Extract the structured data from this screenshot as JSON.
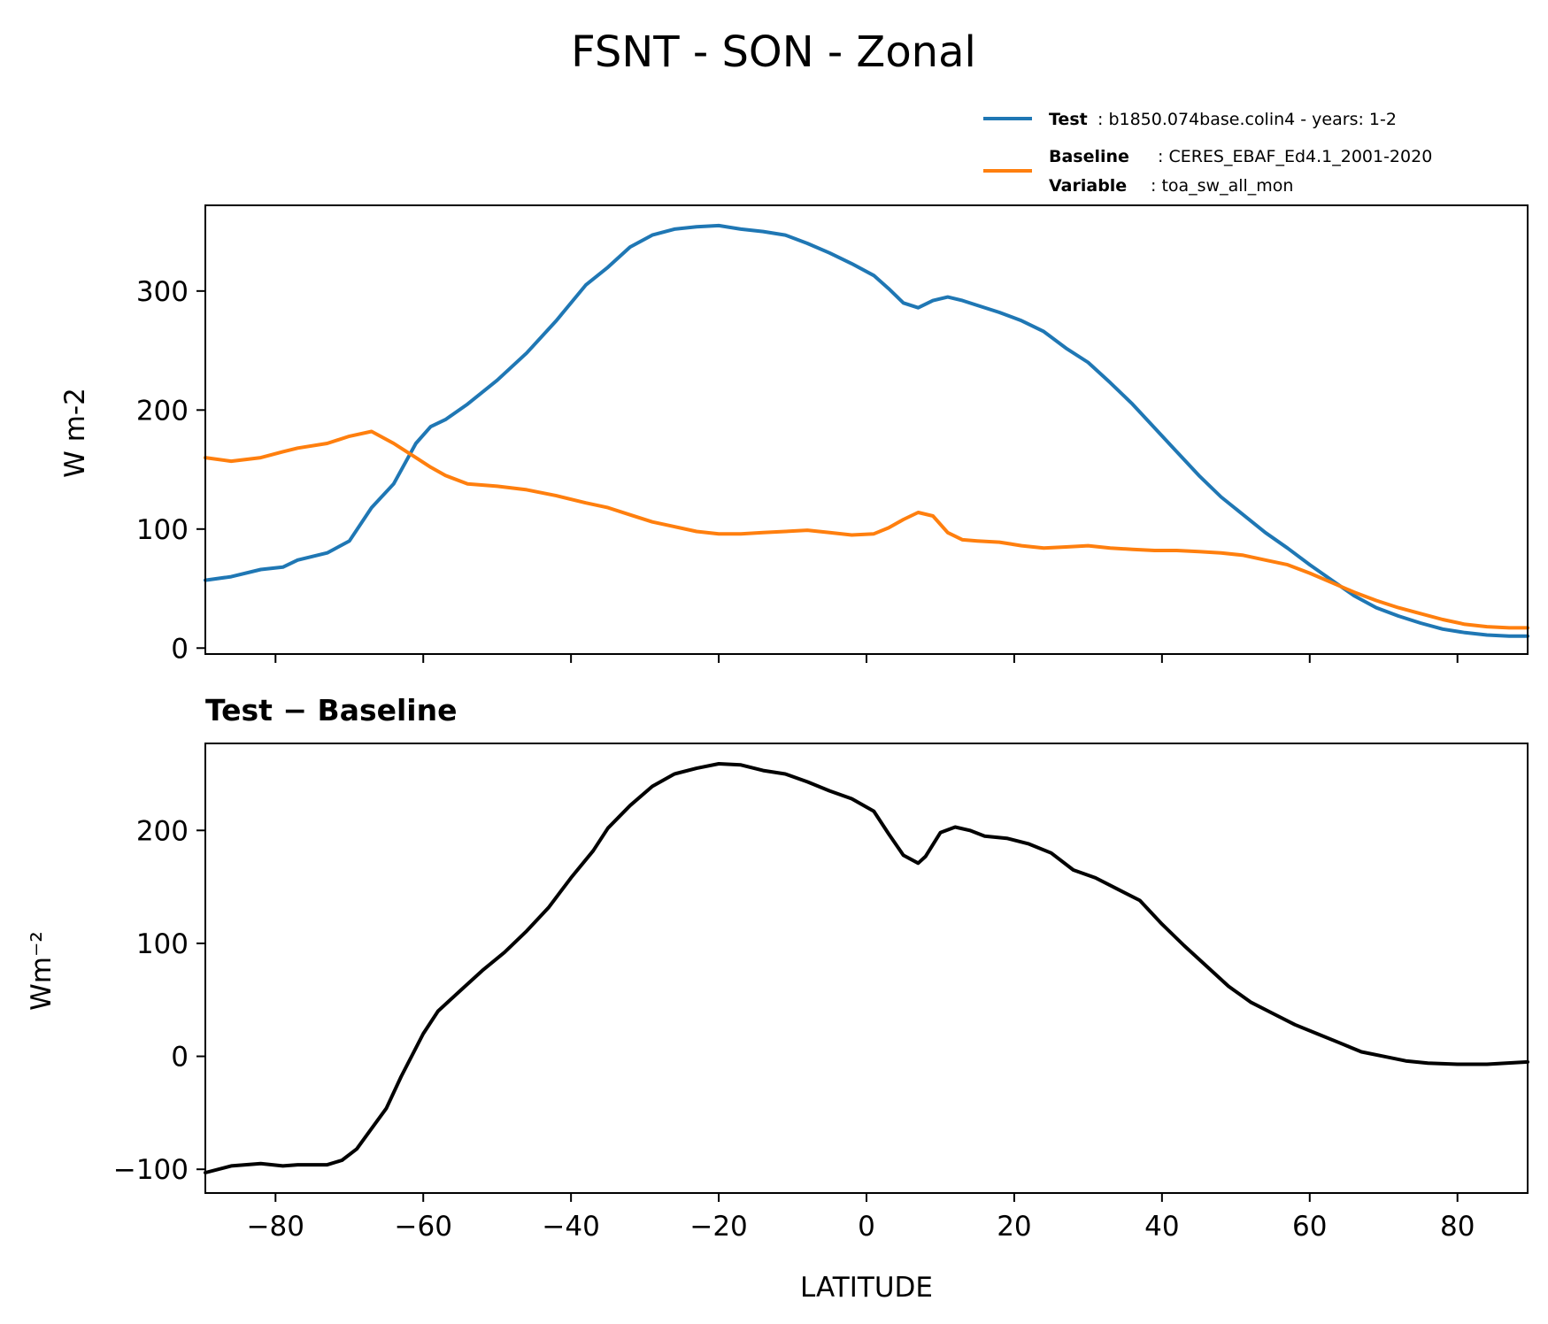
{
  "figure": {
    "title": "FSNT - SON - Zonal"
  },
  "legend": {
    "placement": "top-right",
    "entries": [
      {
        "key": "Test",
        "text": ": b1850.074base.colin4 - years: 1-2",
        "color": "#1f77b4"
      },
      {
        "key": "Baseline",
        "text": ": CERES_EBAF_Ed4.1_2001-2020",
        "color": "#ff7f0e"
      },
      {
        "key": "Variable",
        "text": ": toa_sw_all_mon"
      }
    ]
  },
  "chart_data": [
    {
      "type": "line",
      "title": "",
      "xlabel": "",
      "ylabel": "W m-2",
      "xlim": [
        -89.5,
        89.5
      ],
      "ylim": [
        -5,
        372
      ],
      "xticks": [
        -80,
        -60,
        -40,
        -20,
        0,
        20,
        40,
        60,
        80
      ],
      "xtick_labels_visible": false,
      "yticks": [
        0,
        100,
        200,
        300
      ],
      "ytick_labels": [
        "0",
        "100",
        "200",
        "300"
      ],
      "grid": false,
      "x": [
        -89.5,
        -86,
        -82,
        -79,
        -77,
        -73,
        -70,
        -67,
        -64,
        -61,
        -59,
        -57,
        -54,
        -50,
        -46,
        -42,
        -38,
        -35,
        -32,
        -29,
        -26,
        -23,
        -20,
        -17,
        -14,
        -11,
        -8,
        -5,
        -2,
        1,
        3,
        5,
        7,
        9,
        11,
        13,
        15,
        18,
        21,
        24,
        27,
        30,
        33,
        36,
        39,
        42,
        45,
        48,
        51,
        54,
        57,
        60,
        63,
        66,
        69,
        72,
        75,
        78,
        81,
        84,
        87,
        89.5
      ],
      "series": [
        {
          "name": "Test",
          "color": "#1f77b4",
          "values": [
            57,
            60,
            66,
            68,
            74,
            80,
            90,
            118,
            138,
            172,
            186,
            192,
            205,
            225,
            248,
            275,
            305,
            320,
            337,
            347,
            352,
            354,
            355,
            352,
            350,
            347,
            340,
            332,
            323,
            313,
            302,
            290,
            286,
            292,
            295,
            292,
            288,
            282,
            275,
            266,
            252,
            240,
            223,
            205,
            185,
            165,
            145,
            127,
            112,
            97,
            84,
            70,
            57,
            44,
            34,
            27,
            21,
            16,
            13,
            11,
            10,
            10
          ],
          "values_note": "Test"
        },
        {
          "name": "Baseline",
          "color": "#ff7f0e",
          "values": [
            160,
            157,
            160,
            165,
            168,
            172,
            178,
            182,
            172,
            160,
            152,
            145,
            138,
            136,
            133,
            128,
            122,
            118,
            112,
            106,
            102,
            98,
            96,
            96,
            97,
            98,
            99,
            97,
            95,
            96,
            101,
            108,
            114,
            111,
            97,
            91,
            90,
            89,
            86,
            84,
            85,
            86,
            84,
            83,
            82,
            82,
            81,
            80,
            78,
            74,
            70,
            63,
            55,
            47,
            40,
            34,
            29,
            24,
            20,
            18,
            17,
            17
          ]
        }
      ]
    },
    {
      "type": "line",
      "title": "Test − Baseline",
      "xlabel": "LATITUDE",
      "ylabel": "Wm⁻²",
      "xlim": [
        -89.5,
        89.5
      ],
      "ylim": [
        -121,
        277
      ],
      "xticks": [
        -80,
        -60,
        -40,
        -20,
        0,
        20,
        40,
        60,
        80
      ],
      "xtick_labels": [
        "−80",
        "−60",
        "−40",
        "−20",
        "0",
        "20",
        "40",
        "60",
        "80"
      ],
      "yticks": [
        -100,
        0,
        100,
        200
      ],
      "ytick_labels": [
        "−100",
        "0",
        "100",
        "200"
      ],
      "grid": false,
      "x": [
        -89.5,
        -86,
        -82,
        -79,
        -77,
        -73,
        -71,
        -69,
        -67,
        -65,
        -63,
        -60,
        -58,
        -55,
        -52,
        -49,
        -46,
        -43,
        -40,
        -37,
        -35,
        -32,
        -29,
        -26,
        -23,
        -20,
        -17,
        -14,
        -11,
        -8,
        -5,
        -2,
        1,
        3,
        5,
        7,
        8,
        10,
        12,
        14,
        16,
        19,
        22,
        25,
        28,
        31,
        34,
        37,
        40,
        43,
        46,
        49,
        52,
        55,
        58,
        61,
        64,
        67,
        70,
        73,
        76,
        80,
        84,
        89.5
      ],
      "series": [
        {
          "name": "Test − Baseline",
          "color": "#000000",
          "values": [
            -103,
            -97,
            -95,
            -97,
            -96,
            -96,
            -92,
            -82,
            -64,
            -46,
            -18,
            20,
            40,
            58,
            76,
            92,
            111,
            132,
            158,
            182,
            202,
            222,
            239,
            250,
            255,
            259,
            258,
            253,
            250,
            243,
            235,
            228,
            217,
            197,
            178,
            171,
            177,
            198,
            203,
            200,
            195,
            193,
            188,
            180,
            165,
            158,
            148,
            138,
            117,
            98,
            80,
            62,
            48,
            38,
            28,
            20,
            12,
            4,
            0,
            -4,
            -6,
            -7,
            -7,
            -5
          ]
        }
      ]
    }
  ]
}
